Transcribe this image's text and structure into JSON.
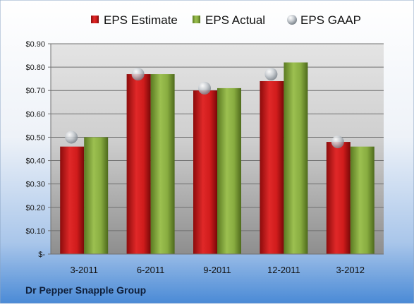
{
  "chart_data": {
    "type": "bar",
    "title": "",
    "xlabel": "",
    "ylabel": "",
    "ylim": [
      0,
      0.9
    ],
    "yticks": [
      {
        "value": 0.9,
        "label": "$0.90"
      },
      {
        "value": 0.8,
        "label": "$0.80"
      },
      {
        "value": 0.7,
        "label": "$0.70"
      },
      {
        "value": 0.6,
        "label": "$0.60"
      },
      {
        "value": 0.5,
        "label": "$0.50"
      },
      {
        "value": 0.4,
        "label": "$0.40"
      },
      {
        "value": 0.3,
        "label": "$0.30"
      },
      {
        "value": 0.2,
        "label": "$0.20"
      },
      {
        "value": 0.1,
        "label": "$0.10"
      },
      {
        "value": 0.0,
        "label": "$-"
      }
    ],
    "grid": true,
    "legend": "top",
    "categories": [
      "3-2011",
      "6-2011",
      "9-2011",
      "12-2011",
      "3-2012"
    ],
    "series": [
      {
        "name": "EPS Estimate",
        "kind": "bar",
        "color": "#d42020",
        "values": [
          0.46,
          0.77,
          0.7,
          0.74,
          0.48
        ]
      },
      {
        "name": "EPS Actual",
        "kind": "bar",
        "color": "#8cb040",
        "values": [
          0.5,
          0.77,
          0.71,
          0.82,
          0.46
        ]
      },
      {
        "name": "EPS GAAP",
        "kind": "marker",
        "color": "#b8c0c8",
        "values": [
          0.5,
          0.77,
          0.71,
          0.77,
          0.48
        ]
      }
    ],
    "footer": "Dr Pepper Snapple Group"
  }
}
